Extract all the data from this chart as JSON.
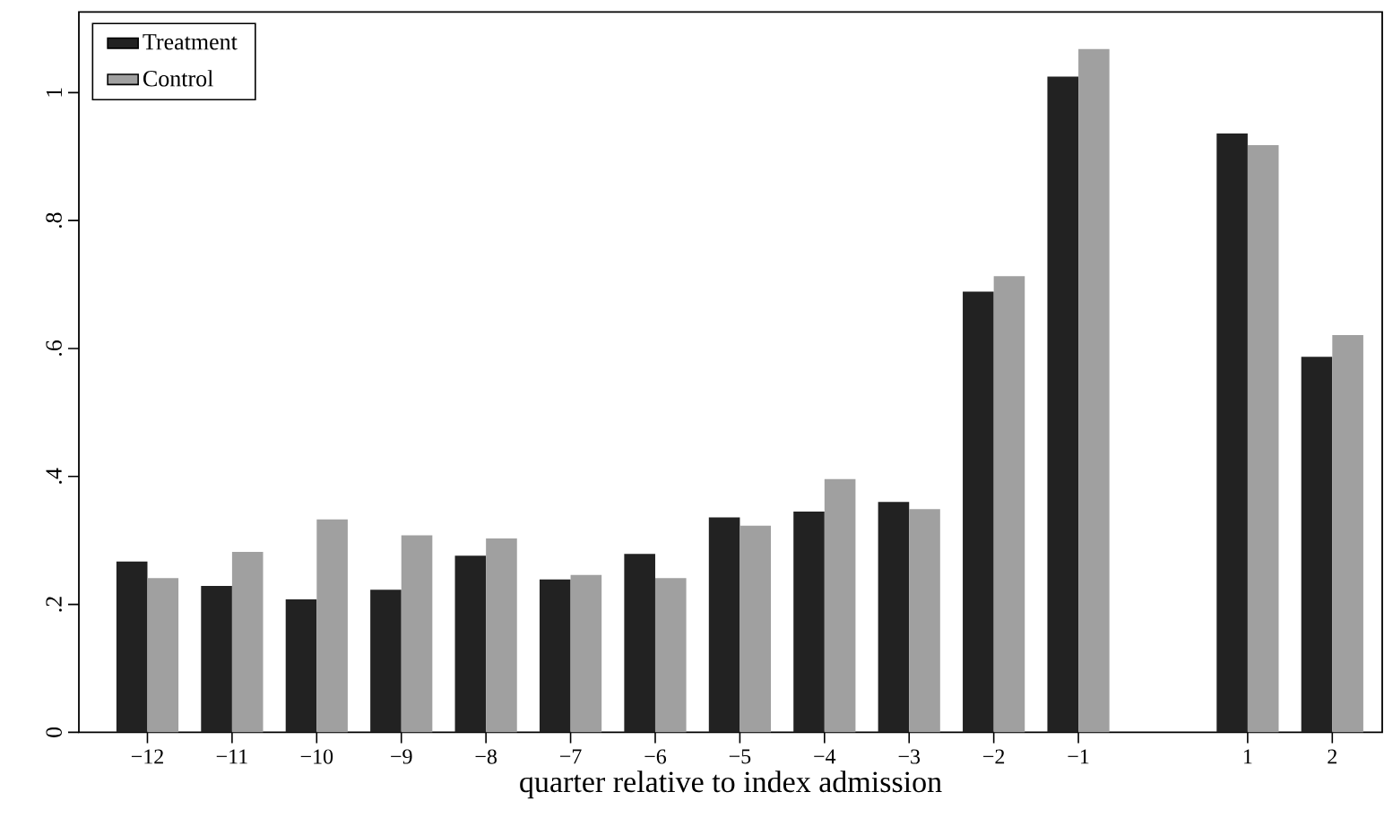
{
  "chart_data": {
    "type": "bar",
    "xlabel": "quarter relative to index admission",
    "categories": [
      "−12",
      "−11",
      "−10",
      "−9",
      "−8",
      "−7",
      "−6",
      "−5",
      "−4",
      "−3",
      "−2",
      "−1",
      null,
      "1",
      "2"
    ],
    "series": [
      {
        "name": "Treatment",
        "color": "#222222",
        "values": [
          0.267,
          0.229,
          0.208,
          0.223,
          0.276,
          0.239,
          0.279,
          0.336,
          0.345,
          0.36,
          0.689,
          1.025,
          null,
          0.936,
          0.587
        ]
      },
      {
        "name": "Control",
        "color": "#a0a0a0",
        "values": [
          0.241,
          0.282,
          0.333,
          0.308,
          0.303,
          0.246,
          0.241,
          0.323,
          0.396,
          0.349,
          0.713,
          1.068,
          null,
          0.918,
          0.621
        ]
      }
    ],
    "ylim": [
      0,
      1.126
    ],
    "yticks": [
      0,
      {
        "value": 0.2,
        "label": ".2"
      },
      {
        "value": 0.4,
        "label": ".4"
      },
      {
        "value": 0.6,
        "label": ".6"
      },
      {
        "value": 0.8,
        "label": ".8"
      },
      1
    ],
    "grid": false,
    "legend": "top left"
  }
}
